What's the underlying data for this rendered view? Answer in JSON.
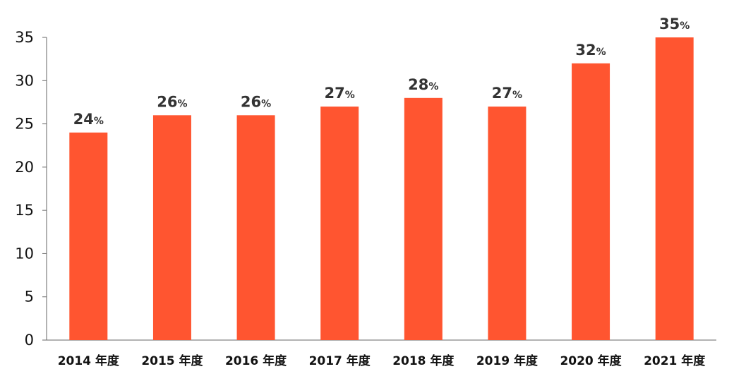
{
  "chart_data": {
    "type": "bar",
    "categories": [
      "2014 年度",
      "2015 年度",
      "2016 年度",
      "2017 年度",
      "2018 年度",
      "2019 年度",
      "2020 年度",
      "2021 年度"
    ],
    "values": [
      24,
      26,
      26,
      27,
      28,
      27,
      32,
      35
    ],
    "value_suffix": "%",
    "ylim": [
      0,
      35
    ],
    "yticks": [
      0,
      5,
      10,
      15,
      20,
      25,
      30,
      35
    ],
    "title": "",
    "xlabel": "",
    "ylabel": "",
    "grid": false,
    "legend": "none",
    "bar_color": "#ff5530",
    "axis_color": "#666666",
    "label_color": "#333333"
  }
}
